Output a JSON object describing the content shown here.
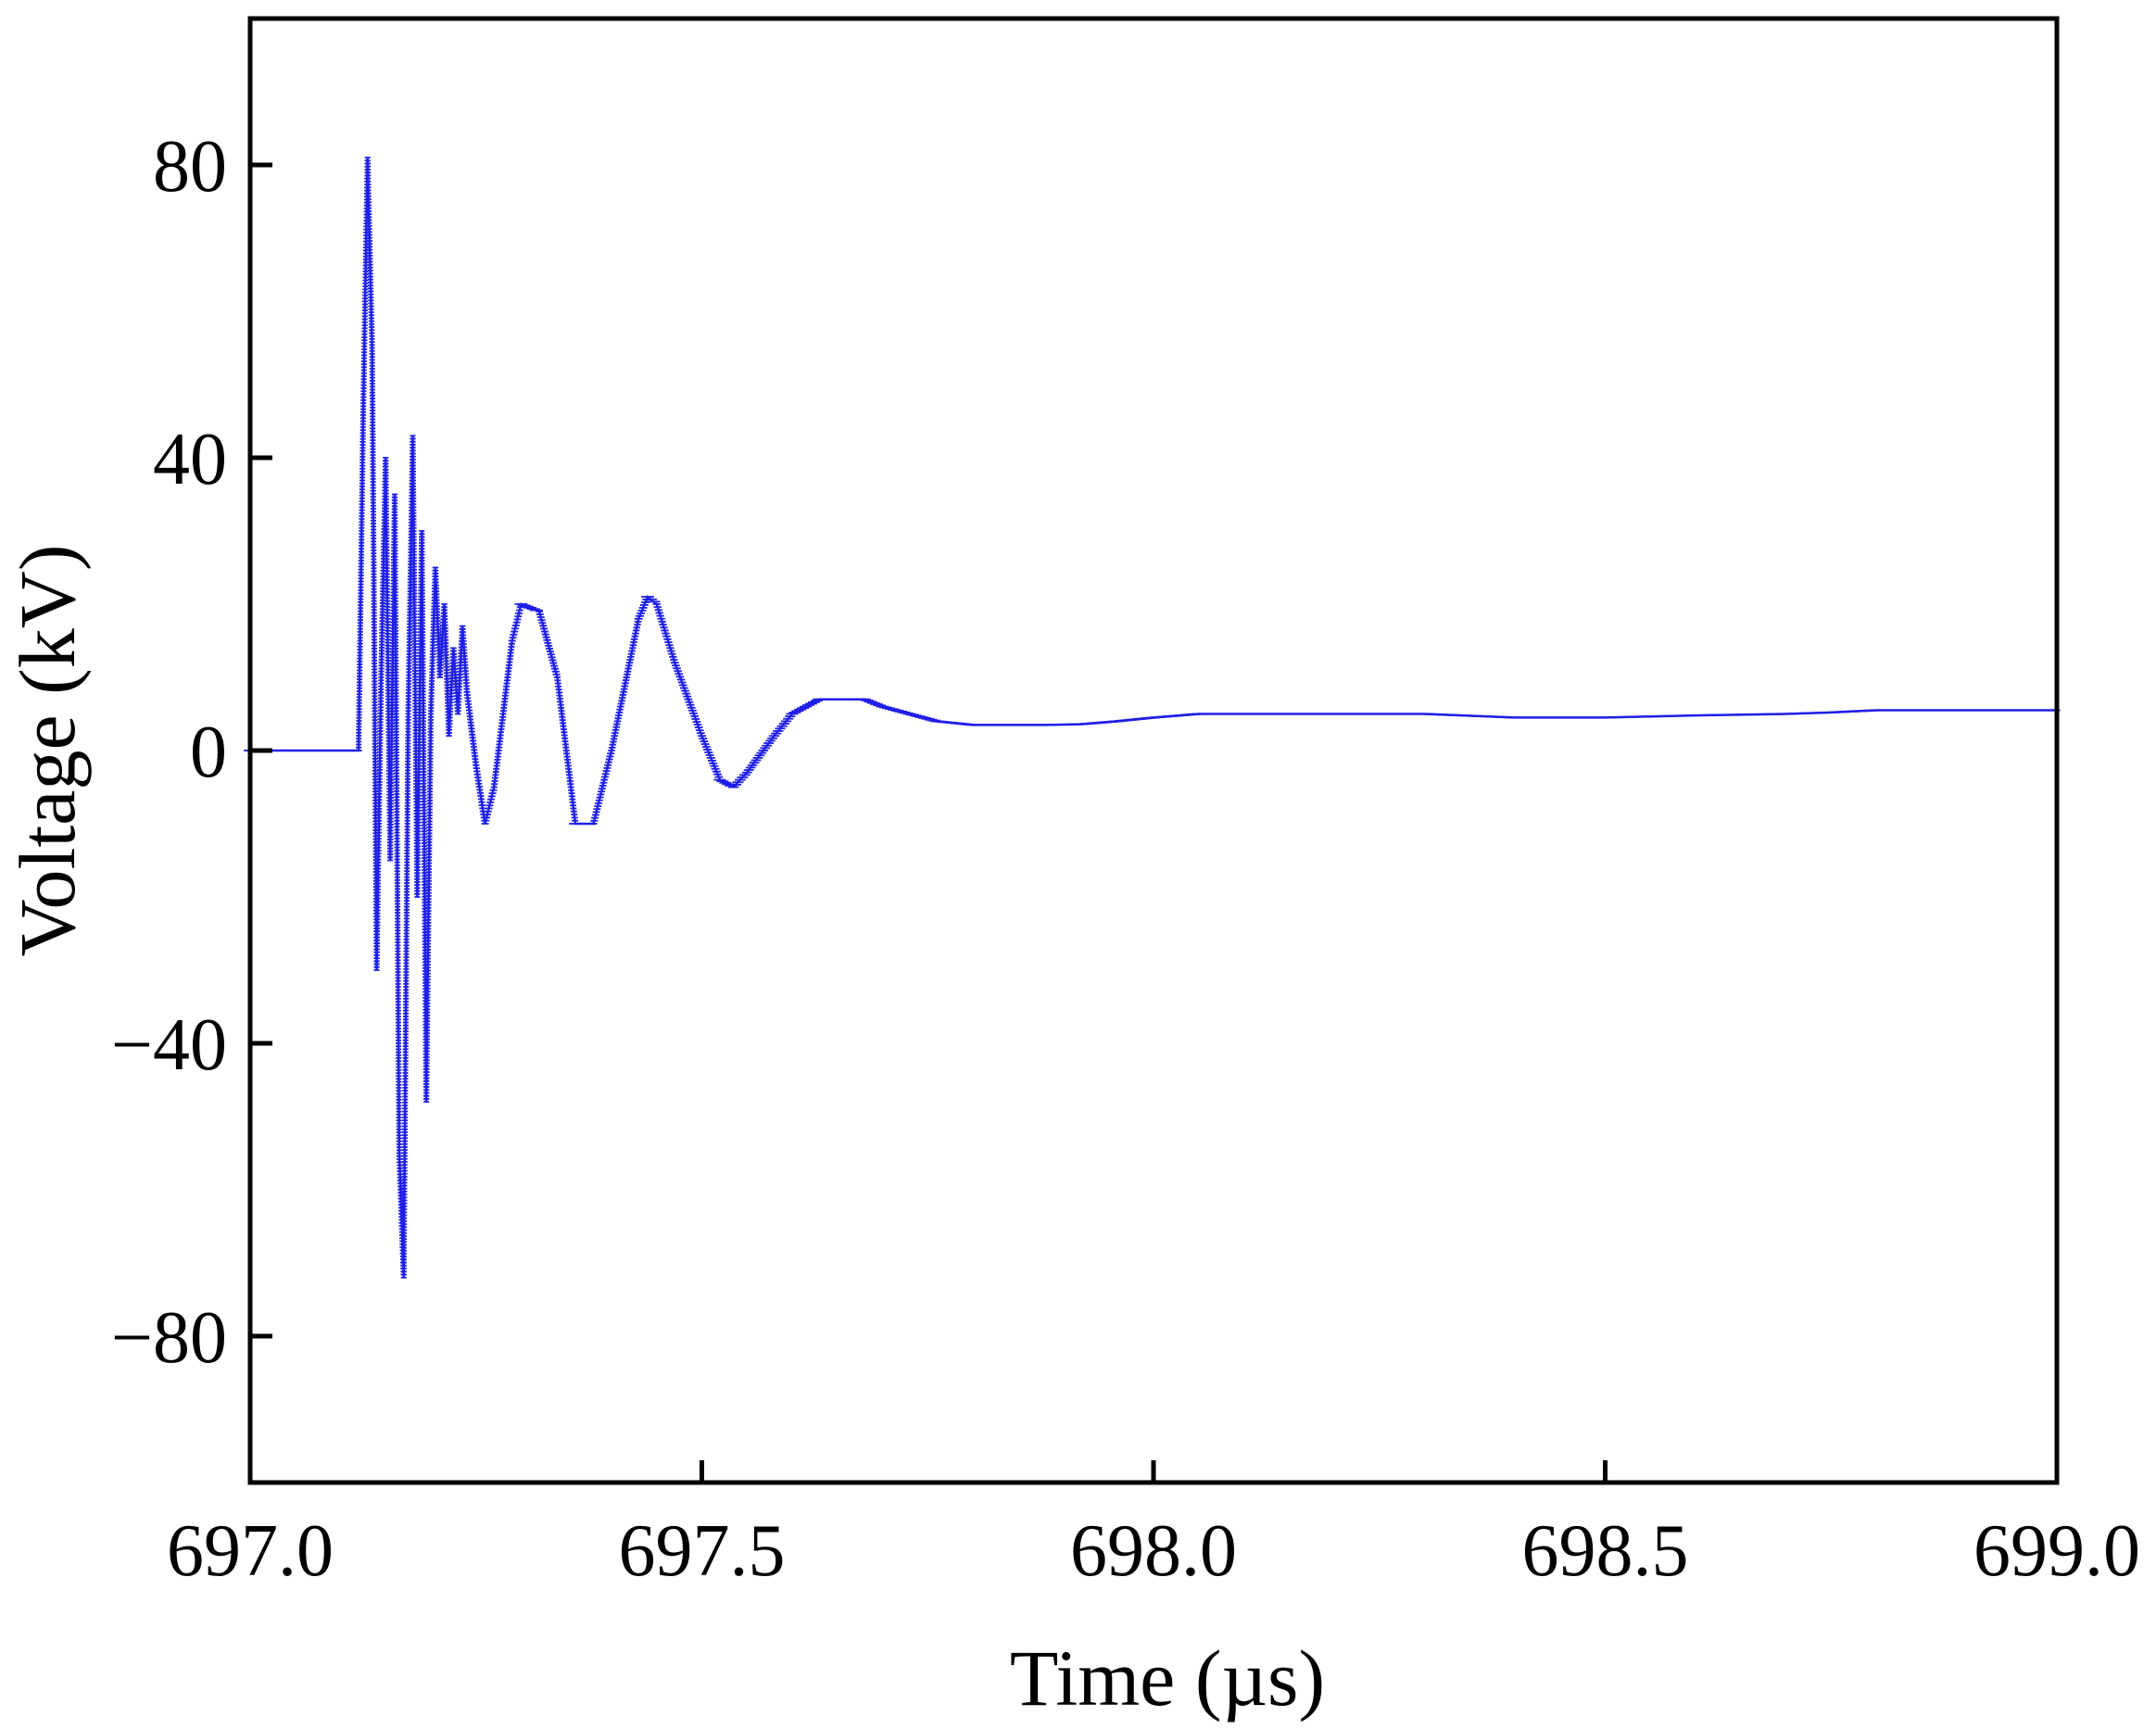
{
  "chart_data": {
    "type": "line",
    "title": "",
    "xlabel": "Time (µs)",
    "ylabel": "Voltage (kV)",
    "xlim": [
      697.0,
      699.0
    ],
    "ylim": [
      -100,
      100
    ],
    "xticks": [
      697.0,
      697.5,
      698.0,
      698.5,
      699.0
    ],
    "xtick_labels": [
      "697.0",
      "697.5",
      "698.0",
      "698.5",
      "699.0"
    ],
    "yticks": [
      -80,
      -40,
      0,
      40,
      80
    ],
    "ytick_labels": [
      "−80",
      "−40",
      "0",
      "40",
      "80"
    ],
    "grid": false,
    "legend": "none",
    "series": [
      {
        "color": "#1f1fe6",
        "x": [
          697.0,
          697.12,
          697.125,
          697.13,
          697.135,
          697.14,
          697.145,
          697.15,
          697.155,
          697.16,
          697.165,
          697.17,
          697.175,
          697.18,
          697.185,
          697.19,
          697.195,
          697.2,
          697.205,
          697.21,
          697.215,
          697.22,
          697.225,
          697.23,
          697.235,
          697.24,
          697.25,
          697.26,
          697.27,
          697.28,
          697.29,
          697.3,
          697.32,
          697.34,
          697.35,
          697.36,
          697.38,
          697.4,
          697.42,
          697.43,
          697.44,
          697.45,
          697.47,
          697.5,
          697.52,
          697.535,
          697.55,
          697.58,
          697.6,
          697.63,
          697.66,
          697.68,
          697.7,
          697.73,
          697.76,
          697.8,
          697.84,
          697.88,
          697.92,
          697.96,
          698.0,
          698.05,
          698.1,
          698.2,
          698.3,
          698.4,
          698.5,
          698.6,
          698.7,
          698.75,
          698.8,
          698.85,
          698.9,
          698.95,
          699.0
        ],
        "y": [
          0,
          0,
          45,
          81,
          55,
          -30,
          10,
          40,
          -15,
          35,
          -55,
          -72,
          5,
          43,
          -20,
          30,
          -48,
          5,
          25,
          10,
          20,
          2,
          14,
          5,
          17,
          8,
          -2,
          -10,
          -5,
          5,
          15,
          20,
          19,
          10,
          0,
          -10,
          -10,
          0,
          12,
          18,
          21,
          20,
          12,
          2,
          -4,
          -5,
          -3,
          2,
          5,
          7,
          7,
          7,
          6,
          5,
          4,
          3.5,
          3.5,
          3.5,
          3.6,
          4,
          4.5,
          5,
          5,
          5,
          5,
          4.5,
          4.5,
          4.8,
          5,
          5.2,
          5.5,
          5.5,
          5.5,
          5.5,
          5.5
        ]
      }
    ]
  }
}
